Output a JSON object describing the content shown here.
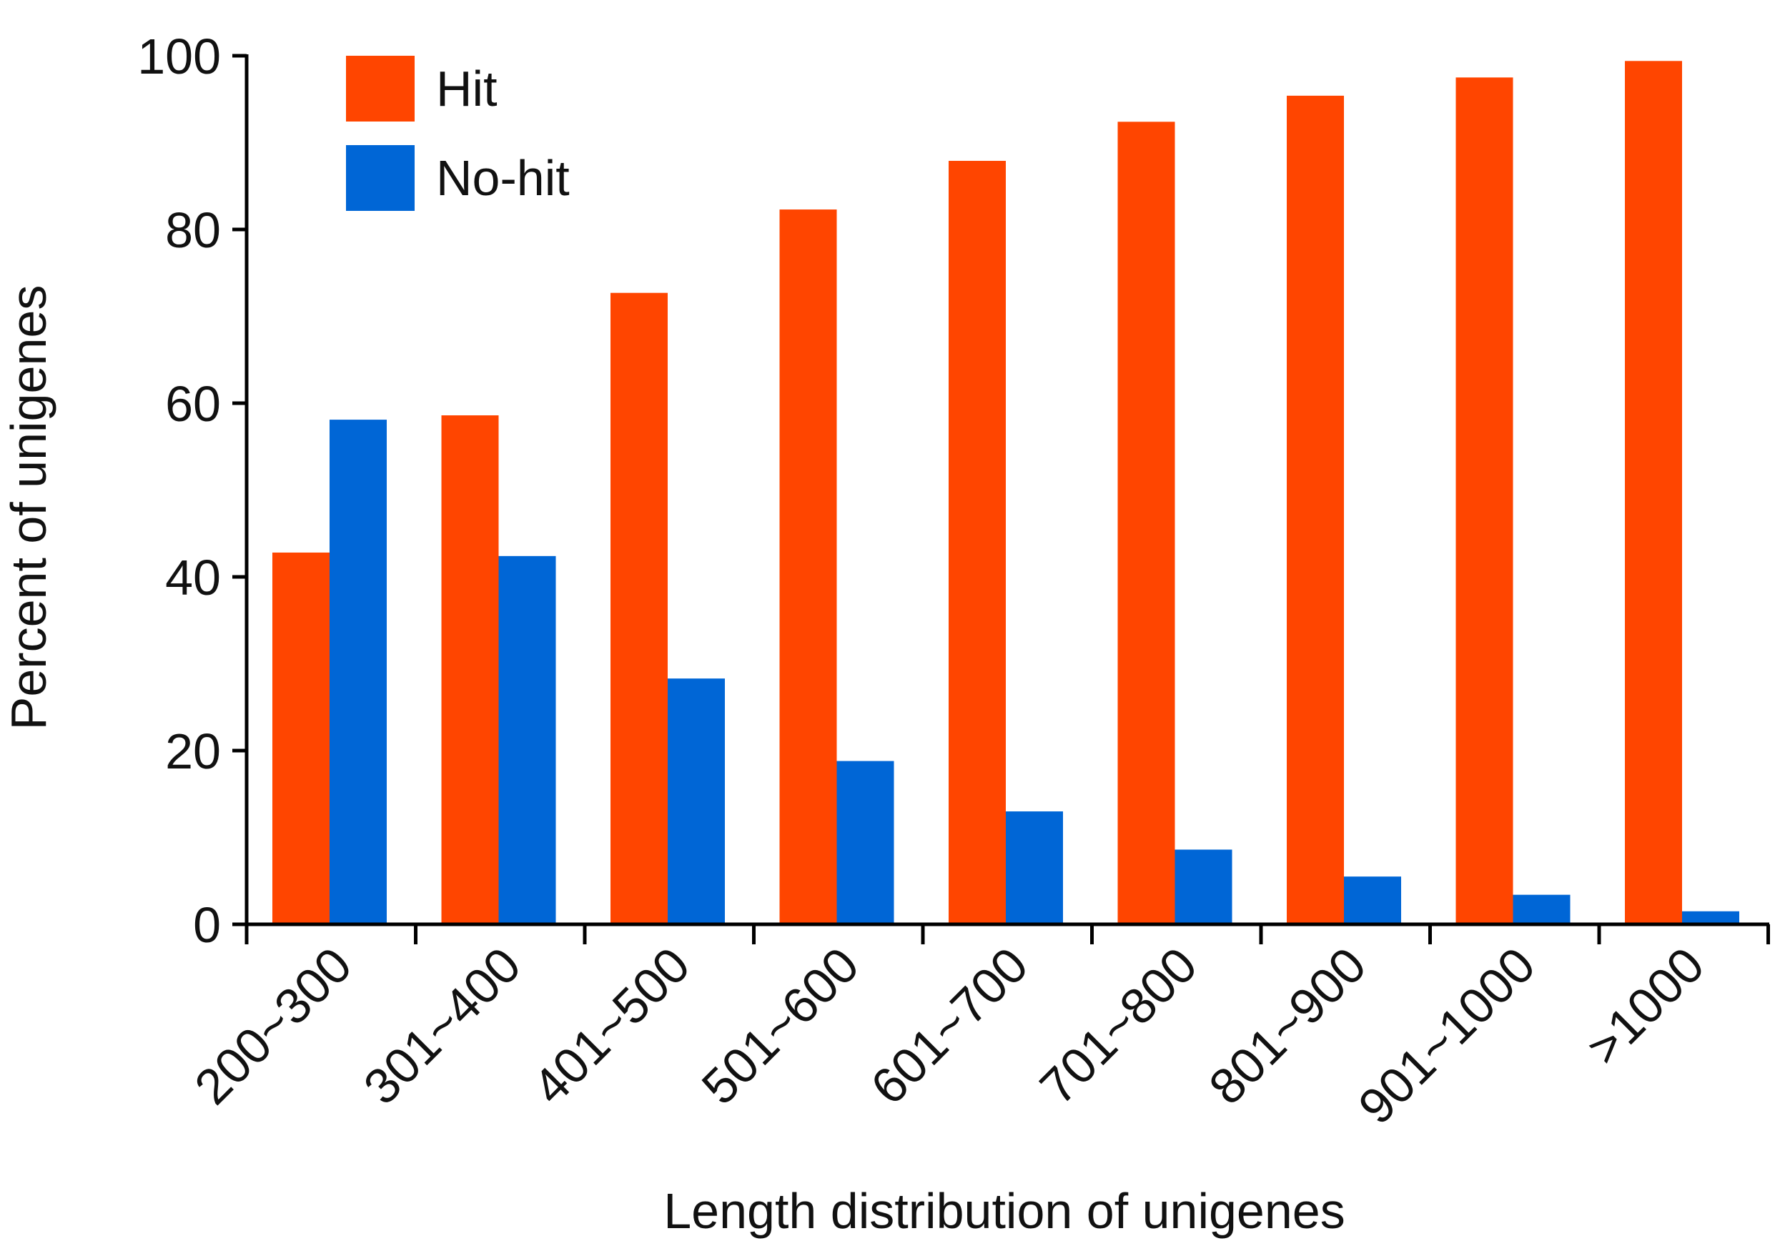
{
  "chart_data": {
    "type": "bar",
    "title": "",
    "xlabel": "Length distribution of unigenes",
    "ylabel": "Percent of unigenes",
    "ylim": [
      0,
      100
    ],
    "yticks": [
      0,
      20,
      40,
      60,
      80,
      100
    ],
    "grid": false,
    "legend_position": "top-left",
    "categories": [
      "200~300",
      "301~400",
      "401~500",
      "501~600",
      "601~700",
      "701~800",
      "801~900",
      "901~1000",
      ">1000"
    ],
    "series": [
      {
        "name": "Hit",
        "color": "#ff4500",
        "values": [
          42.8,
          58.6,
          72.7,
          82.3,
          87.9,
          92.4,
          95.4,
          97.5,
          99.4
        ]
      },
      {
        "name": "No-hit",
        "color": "#0066d6",
        "values": [
          58.1,
          42.4,
          28.3,
          18.8,
          13.0,
          8.6,
          5.5,
          3.4,
          1.5
        ]
      }
    ]
  }
}
